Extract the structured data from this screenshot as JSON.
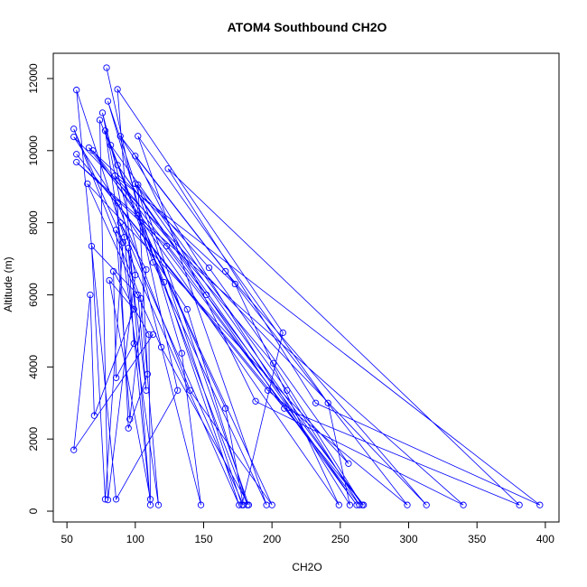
{
  "chart_data": {
    "type": "scatter",
    "title": "ATOM4 Southbound CH2O",
    "xlabel": "CH2O",
    "ylabel": "Altitude (m)",
    "xlim": [
      40,
      410
    ],
    "ylim": [
      -300,
      12700
    ],
    "x_ticks": [
      50,
      100,
      150,
      200,
      250,
      300,
      350,
      400
    ],
    "y_ticks": [
      0,
      2000,
      4000,
      6000,
      8000,
      10000,
      12000
    ],
    "grid": false,
    "legend": "none",
    "color": "#0000ff",
    "connected": true,
    "points": [
      {
        "x": 79,
        "y": 12300
      },
      {
        "x": 131,
        "y": 3350
      },
      {
        "x": 86,
        "y": 330
      },
      {
        "x": 57,
        "y": 11680
      },
      {
        "x": 92,
        "y": 7600
      },
      {
        "x": 111,
        "y": 170
      },
      {
        "x": 87,
        "y": 11700
      },
      {
        "x": 208,
        "y": 4950
      },
      {
        "x": 178,
        "y": 170
      },
      {
        "x": 80,
        "y": 11370
      },
      {
        "x": 134,
        "y": 4380
      },
      {
        "x": 148,
        "y": 170
      },
      {
        "x": 76,
        "y": 11050
      },
      {
        "x": 100,
        "y": 6550
      },
      {
        "x": 80,
        "y": 310
      },
      {
        "x": 74,
        "y": 10850
      },
      {
        "x": 121,
        "y": 6350
      },
      {
        "x": 176,
        "y": 170
      },
      {
        "x": 55,
        "y": 10600
      },
      {
        "x": 104,
        "y": 5900
      },
      {
        "x": 117,
        "y": 170
      },
      {
        "x": 78,
        "y": 10550
      },
      {
        "x": 113,
        "y": 6900
      },
      {
        "x": 196,
        "y": 170
      },
      {
        "x": 102,
        "y": 10400
      },
      {
        "x": 241,
        "y": 3000
      },
      {
        "x": 257,
        "y": 170
      },
      {
        "x": 89,
        "y": 10400
      },
      {
        "x": 166,
        "y": 6650
      },
      {
        "x": 313,
        "y": 170
      },
      {
        "x": 55,
        "y": 10380
      },
      {
        "x": 138,
        "y": 5600
      },
      {
        "x": 182,
        "y": 170
      },
      {
        "x": 82,
        "y": 10150
      },
      {
        "x": 211,
        "y": 3350
      },
      {
        "x": 264,
        "y": 170
      },
      {
        "x": 66,
        "y": 10080
      },
      {
        "x": 173,
        "y": 6300
      },
      {
        "x": 249,
        "y": 170
      },
      {
        "x": 69,
        "y": 10000
      },
      {
        "x": 152,
        "y": 6000
      },
      {
        "x": 267,
        "y": 170
      },
      {
        "x": 57,
        "y": 9900
      },
      {
        "x": 197,
        "y": 3350
      },
      {
        "x": 299,
        "y": 170
      },
      {
        "x": 100,
        "y": 9850
      },
      {
        "x": 188,
        "y": 3050
      },
      {
        "x": 340,
        "y": 170
      },
      {
        "x": 57,
        "y": 9680
      },
      {
        "x": 123,
        "y": 7350
      },
      {
        "x": 262,
        "y": 170
      },
      {
        "x": 87,
        "y": 9600
      },
      {
        "x": 209,
        "y": 2850
      },
      {
        "x": 381,
        "y": 170
      },
      {
        "x": 124,
        "y": 9500
      },
      {
        "x": 232,
        "y": 3000
      },
      {
        "x": 396,
        "y": 170
      },
      {
        "x": 85,
        "y": 9300
      },
      {
        "x": 201,
        "y": 4100
      },
      {
        "x": 266,
        "y": 170
      },
      {
        "x": 100,
        "y": 9080
      },
      {
        "x": 154,
        "y": 6750
      },
      {
        "x": 256,
        "y": 1320
      },
      {
        "x": 65,
        "y": 9080
      },
      {
        "x": 119,
        "y": 4550
      },
      {
        "x": 183,
        "y": 170
      },
      {
        "x": 102,
        "y": 9050
      },
      {
        "x": 109,
        "y": 3800
      },
      {
        "x": 95,
        "y": 2300
      },
      {
        "x": 87,
        "y": 8550
      },
      {
        "x": 140,
        "y": 3350
      },
      {
        "x": 200,
        "y": 170
      },
      {
        "x": 102,
        "y": 8200
      },
      {
        "x": 166,
        "y": 2850
      },
      {
        "x": 179,
        "y": 170
      },
      {
        "x": 89,
        "y": 8000
      },
      {
        "x": 108,
        "y": 6700
      },
      {
        "x": 96,
        "y": 2550
      },
      {
        "x": 86,
        "y": 7800
      },
      {
        "x": 91,
        "y": 7450
      },
      {
        "x": 78,
        "y": 330
      },
      {
        "x": 68,
        "y": 7350
      },
      {
        "x": 102,
        "y": 6000
      },
      {
        "x": 108,
        "y": 3350
      },
      {
        "x": 95,
        "y": 7300
      },
      {
        "x": 99,
        "y": 4650
      },
      {
        "x": 86,
        "y": 3700
      },
      {
        "x": 84,
        "y": 6650
      },
      {
        "x": 110,
        "y": 4900
      },
      {
        "x": 111,
        "y": 330
      },
      {
        "x": 81,
        "y": 6400
      },
      {
        "x": 99,
        "y": 5600
      },
      {
        "x": 70,
        "y": 2650
      },
      {
        "x": 67,
        "y": 6000
      },
      {
        "x": 55,
        "y": 1700
      },
      {
        "x": 113,
        "y": 4900
      }
    ]
  }
}
